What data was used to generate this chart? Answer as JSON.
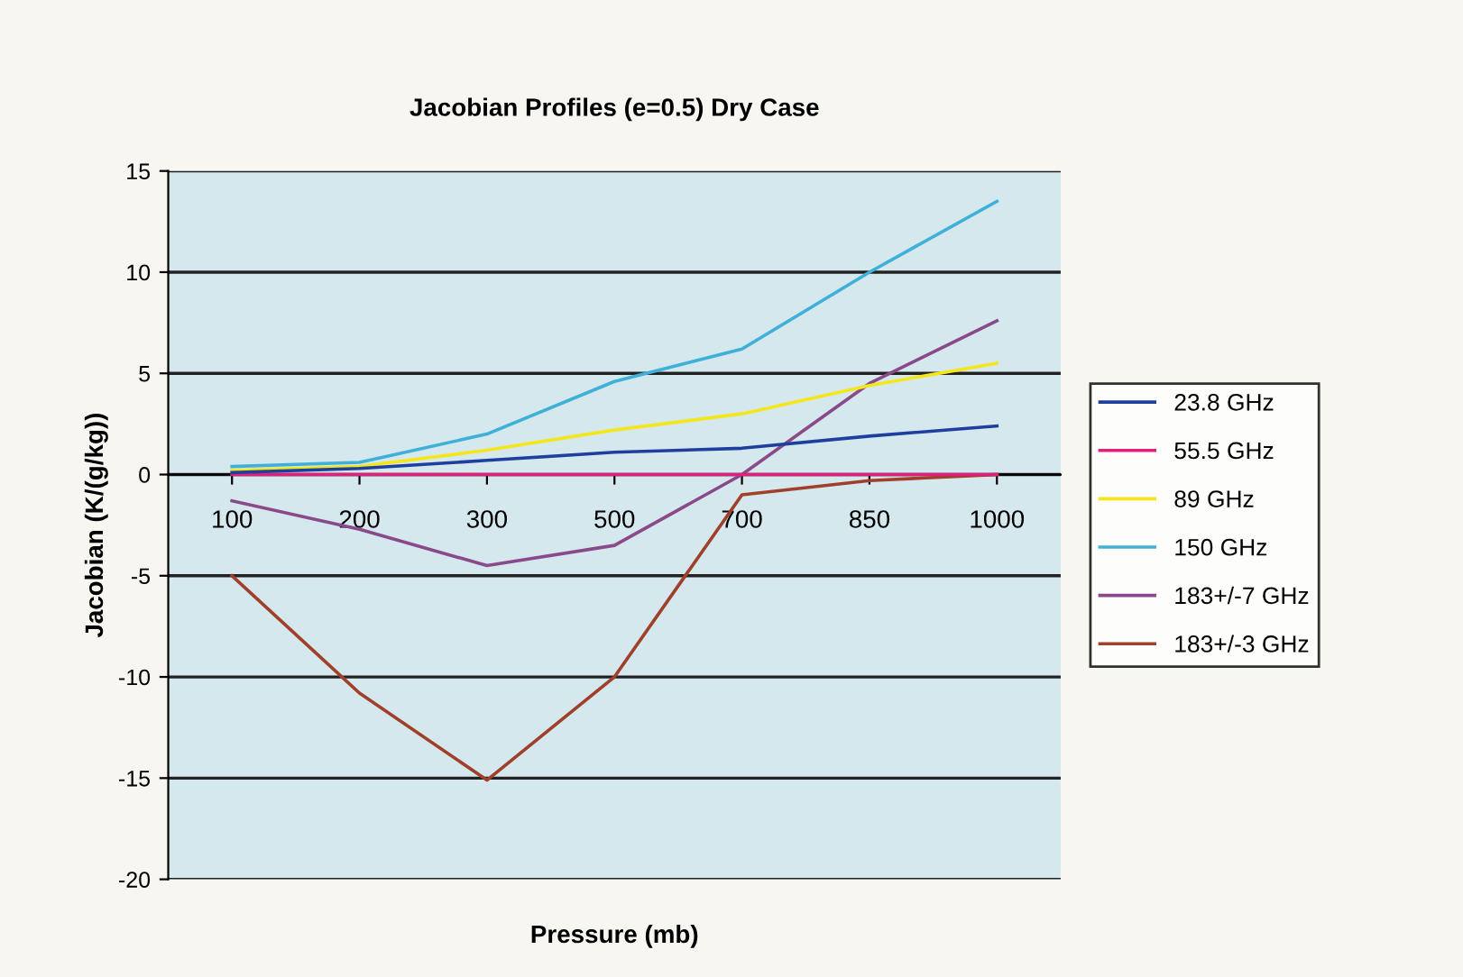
{
  "chart_data": {
    "type": "line",
    "title": "Jacobian Profiles (e=0.5) Dry Case",
    "xlabel": "Pressure (mb)",
    "ylabel": "Jacobian (K/(g/kg))",
    "categories": [
      "100",
      "200",
      "300",
      "500",
      "700",
      "850",
      "1000"
    ],
    "series": [
      {
        "name": "23.8 GHz",
        "color": "#1f3f9f",
        "values": [
          0.1,
          0.3,
          0.7,
          1.1,
          1.3,
          1.9,
          2.4
        ]
      },
      {
        "name": "55.5 GHz",
        "color": "#e0207a",
        "values": [
          0,
          0,
          0,
          0,
          0,
          0,
          0
        ]
      },
      {
        "name": "89 GHz",
        "color": "#f5e61a",
        "values": [
          0.2,
          0.4,
          1.2,
          2.2,
          3.0,
          4.4,
          5.5
        ]
      },
      {
        "name": "150 GHz",
        "color": "#3fb0d8",
        "values": [
          0.4,
          0.6,
          2.0,
          4.6,
          6.2,
          10.0,
          13.5
        ]
      },
      {
        "name": "183+/-7 GHz",
        "color": "#8a4a8a",
        "values": [
          -1.3,
          -2.7,
          -4.5,
          -3.5,
          0,
          4.5,
          7.6
        ]
      },
      {
        "name": "183+/-3 GHz",
        "color": "#a0402a",
        "values": [
          -5,
          -10.8,
          -15.1,
          -10,
          -1.0,
          -0.3,
          0
        ]
      }
    ],
    "ylim": [
      -20,
      15
    ],
    "yticks": [
      -20,
      -15,
      -10,
      -5,
      0,
      5,
      10,
      15
    ],
    "grid": "y",
    "legend": "right",
    "marker": "none",
    "line_style": "solid"
  }
}
